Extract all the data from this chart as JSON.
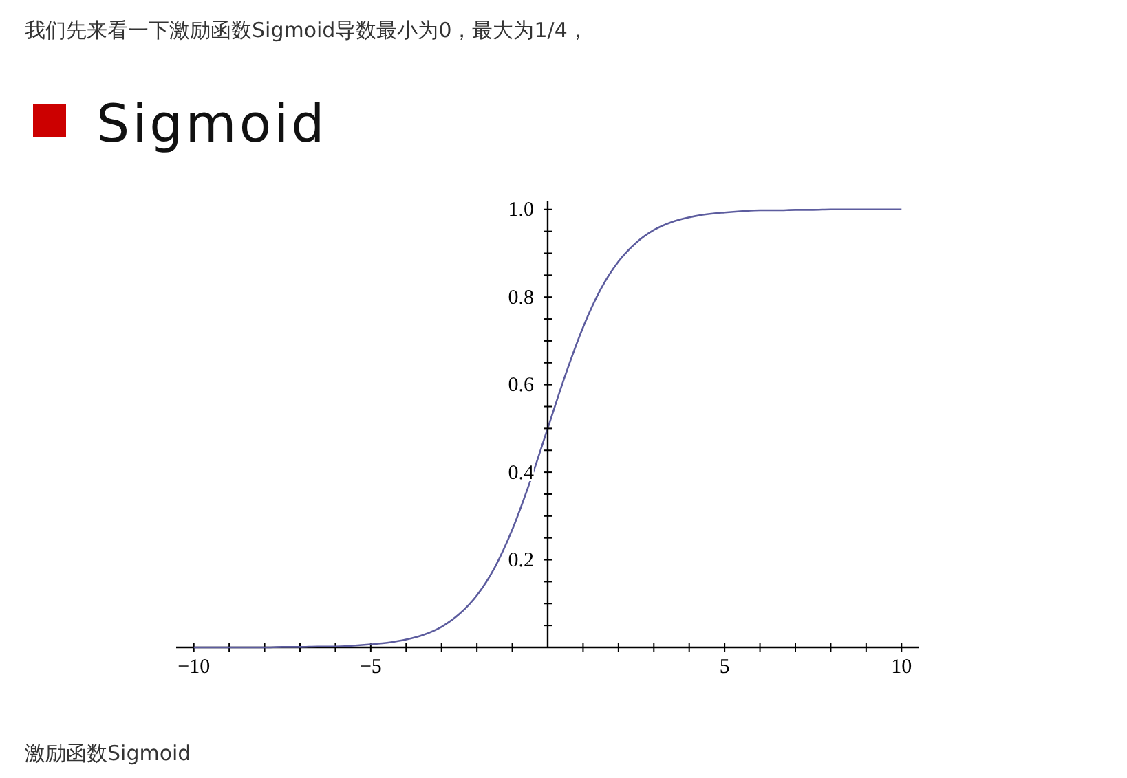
{
  "chart_data": {
    "type": "line",
    "title": "Sigmoid",
    "annotations": [
      "我们先来看一下激励函数Sigmoid导数最小为0，最大为1/4，",
      "激励函数Sigmoid"
    ],
    "x": [
      -10,
      -9.5,
      -9,
      -8.5,
      -8,
      -7.5,
      -7,
      -6.5,
      -6,
      -5.5,
      -5,
      -4.5,
      -4,
      -3.5,
      -3,
      -2.5,
      -2,
      -1.5,
      -1,
      -0.5,
      0,
      0.5,
      1,
      1.5,
      2,
      2.5,
      3,
      3.5,
      4,
      4.5,
      5,
      5.5,
      6,
      6.5,
      7,
      7.5,
      8,
      8.5,
      9,
      9.5,
      10
    ],
    "series": [
      {
        "color": "#5c5c9e",
        "values": [
          0.0,
          0.0,
          0.0,
          0.0,
          0.0,
          0.001,
          0.001,
          0.002,
          0.002,
          0.004,
          0.007,
          0.011,
          0.018,
          0.029,
          0.047,
          0.076,
          0.119,
          0.182,
          0.269,
          0.378,
          0.5,
          0.622,
          0.731,
          0.818,
          0.881,
          0.924,
          0.953,
          0.971,
          0.982,
          0.989,
          0.993,
          0.996,
          0.998,
          0.998,
          0.999,
          0.999,
          1.0,
          1.0,
          1.0,
          1.0,
          1.0
        ]
      }
    ],
    "xlim": [
      -10.5,
      10.5
    ],
    "ylim": [
      0,
      1.02
    ],
    "xticks": [
      -10,
      {
        "value": -9,
        "label": null
      },
      {
        "value": -8,
        "label": null
      },
      {
        "value": -7,
        "label": null
      },
      {
        "value": -6,
        "label": null
      },
      -5,
      {
        "value": -4,
        "label": null
      },
      {
        "value": -3,
        "label": null
      },
      {
        "value": -2,
        "label": null
      },
      {
        "value": -1,
        "label": null
      },
      {
        "value": 1,
        "label": null
      },
      {
        "value": 2,
        "label": null
      },
      {
        "value": 3,
        "label": null
      },
      {
        "value": 4,
        "label": null
      },
      5,
      {
        "value": 6,
        "label": null
      },
      {
        "value": 7,
        "label": null
      },
      {
        "value": 8,
        "label": null
      },
      {
        "value": 9,
        "label": null
      },
      10
    ],
    "yticks": [
      {
        "value": 0.05,
        "label": null
      },
      {
        "value": 0.1,
        "label": null
      },
      {
        "value": 0.15,
        "label": null
      },
      0.2,
      {
        "value": 0.25,
        "label": null
      },
      {
        "value": 0.3,
        "label": null
      },
      {
        "value": 0.35,
        "label": null
      },
      0.4,
      {
        "value": 0.45,
        "label": null
      },
      {
        "value": 0.5,
        "label": null
      },
      {
        "value": 0.55,
        "label": null
      },
      0.6,
      {
        "value": 0.65,
        "label": null
      },
      {
        "value": 0.7,
        "label": null
      },
      {
        "value": 0.75,
        "label": null
      },
      0.8,
      {
        "value": 0.85,
        "label": null
      },
      {
        "value": 0.9,
        "label": null
      },
      {
        "value": 0.95,
        "label": null
      },
      {
        "value": 1,
        "label": "1.0"
      }
    ],
    "grid": false,
    "marker": "none",
    "line_style": "solid"
  }
}
